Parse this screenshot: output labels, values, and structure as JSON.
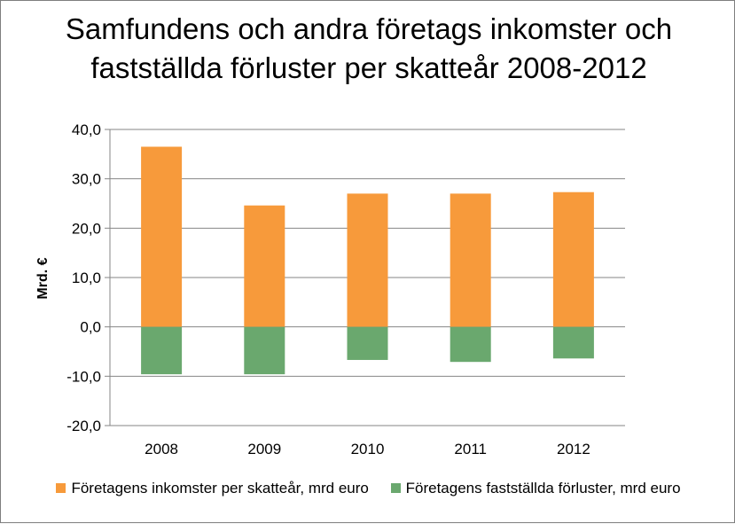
{
  "chart_data": {
    "type": "bar",
    "stacked": true,
    "title": "Samfundens och andra företags inkomster och fastställda förluster per skatteår 2008-2012",
    "ylabel": "Mrd. €",
    "xlabel": "",
    "categories": [
      "2008",
      "2009",
      "2010",
      "2011",
      "2012"
    ],
    "ylim": [
      -20,
      40
    ],
    "yticks": [
      "40,0",
      "30,0",
      "20,0",
      "10,0",
      "0,0",
      "-10,0",
      "-20,0"
    ],
    "ytick_values": [
      40,
      30,
      20,
      10,
      0,
      -10,
      -20
    ],
    "grid": true,
    "legend_position": "bottom",
    "series": [
      {
        "name": "Företagens inkomster per skatteår, mrd  euro",
        "values": [
          36.5,
          24.6,
          27.0,
          27.0,
          27.3
        ],
        "color": "#f79a3b"
      },
      {
        "name": "Företagens fastställda förluster, mrd  euro",
        "values": [
          -9.6,
          -9.6,
          -6.7,
          -7.1,
          -6.4
        ],
        "color": "#6aa86e"
      }
    ]
  }
}
